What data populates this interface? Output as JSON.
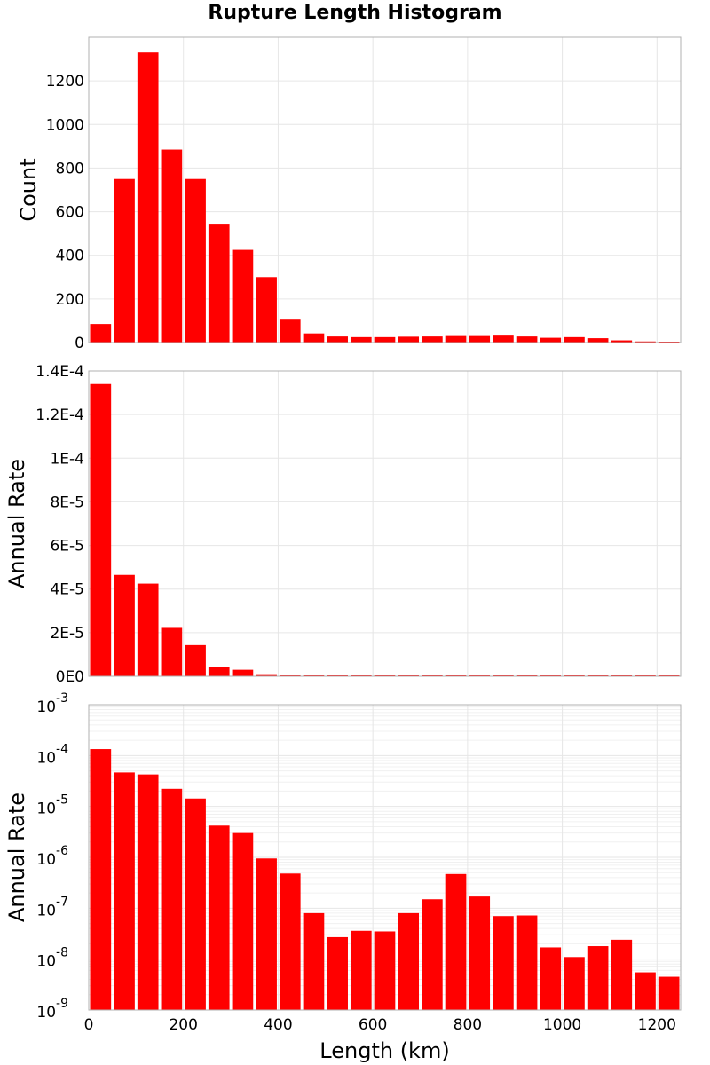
{
  "title": "Rupture Length Histogram",
  "colors": {
    "bar": "#ff0000",
    "grid": "#e6e6e6",
    "minor_grid": "#f0f0f0",
    "frame": "#b0b0b0"
  },
  "xaxis": {
    "label": "Length (km)",
    "ticks": [
      0,
      200,
      400,
      600,
      800,
      1000,
      1200
    ],
    "lim": [
      0,
      1250
    ]
  },
  "chart_data": [
    {
      "type": "bar",
      "title": "Rupture Length Histogram",
      "ylabel": "Count",
      "xlabel": "",
      "bin_width": 50,
      "x": [
        25,
        75,
        125,
        175,
        225,
        275,
        325,
        375,
        425,
        475,
        525,
        575,
        625,
        675,
        725,
        775,
        825,
        875,
        925,
        975,
        1025,
        1075,
        1125,
        1175,
        1225
      ],
      "values": [
        85,
        750,
        1330,
        885,
        750,
        545,
        425,
        300,
        105,
        42,
        28,
        25,
        25,
        27,
        28,
        30,
        30,
        32,
        28,
        22,
        25,
        20,
        10,
        5,
        4
      ],
      "ylim": [
        0,
        1400
      ],
      "yticks": [
        0,
        200,
        400,
        600,
        800,
        1000,
        1200
      ],
      "ytick_labels": [
        "0",
        "200",
        "400",
        "600",
        "800",
        "1000",
        "1200"
      ],
      "grid": true
    },
    {
      "type": "bar",
      "ylabel": "Annual Rate",
      "xlabel": "",
      "bin_width": 50,
      "x": [
        25,
        75,
        125,
        175,
        225,
        275,
        325,
        375,
        425,
        475,
        525,
        575,
        625,
        675,
        725,
        775,
        825,
        875,
        925,
        975,
        1025,
        1075,
        1125,
        1175,
        1225
      ],
      "values": [
        0.000134,
        4.65e-05,
        4.25e-05,
        2.22e-05,
        1.43e-05,
        4.2e-06,
        3e-06,
        9.5e-07,
        4.8e-07,
        8e-08,
        2.7e-08,
        3.6e-08,
        3.5e-08,
        8e-08,
        1.5e-07,
        4.7e-07,
        1.7e-07,
        7e-08,
        7.2e-08,
        1.7e-08,
        1.1e-08,
        1.8e-08,
        2.4e-08,
        5.5e-09,
        4.5e-09
      ],
      "ylim": [
        0,
        0.00014
      ],
      "yticks": [
        0,
        2e-05,
        4e-05,
        6e-05,
        8e-05,
        0.0001,
        0.00012,
        0.00014
      ],
      "ytick_labels": [
        "0E0",
        "2E-5",
        "4E-5",
        "6E-5",
        "8E-5",
        "1E-4",
        "1.2E-4",
        "1.4E-4"
      ],
      "grid": true
    },
    {
      "type": "bar",
      "ylabel": "Annual Rate",
      "xlabel": "Length (km)",
      "yscale": "log",
      "bin_width": 50,
      "x": [
        25,
        75,
        125,
        175,
        225,
        275,
        325,
        375,
        425,
        475,
        525,
        575,
        625,
        675,
        725,
        775,
        825,
        875,
        925,
        975,
        1025,
        1075,
        1125,
        1175,
        1225
      ],
      "values": [
        0.000134,
        4.65e-05,
        4.25e-05,
        2.22e-05,
        1.43e-05,
        4.2e-06,
        3e-06,
        9.5e-07,
        4.8e-07,
        8e-08,
        2.7e-08,
        3.6e-08,
        3.5e-08,
        8e-08,
        1.5e-07,
        4.7e-07,
        1.7e-07,
        7e-08,
        7.2e-08,
        1.7e-08,
        1.1e-08,
        1.8e-08,
        2.4e-08,
        5.5e-09,
        4.5e-09
      ],
      "ylim": [
        1e-09,
        0.001
      ],
      "yticks": [
        1e-09,
        1e-08,
        1e-07,
        1e-06,
        1e-05,
        0.0001,
        0.001
      ],
      "ytick_labels": [
        {
          "base": "10",
          "exp": "-9"
        },
        {
          "base": "10",
          "exp": "-8"
        },
        {
          "base": "10",
          "exp": "-7"
        },
        {
          "base": "10",
          "exp": "-6"
        },
        {
          "base": "10",
          "exp": "-5"
        },
        {
          "base": "10",
          "exp": "-4"
        },
        {
          "base": "10",
          "exp": "-3"
        }
      ],
      "grid": true
    }
  ]
}
